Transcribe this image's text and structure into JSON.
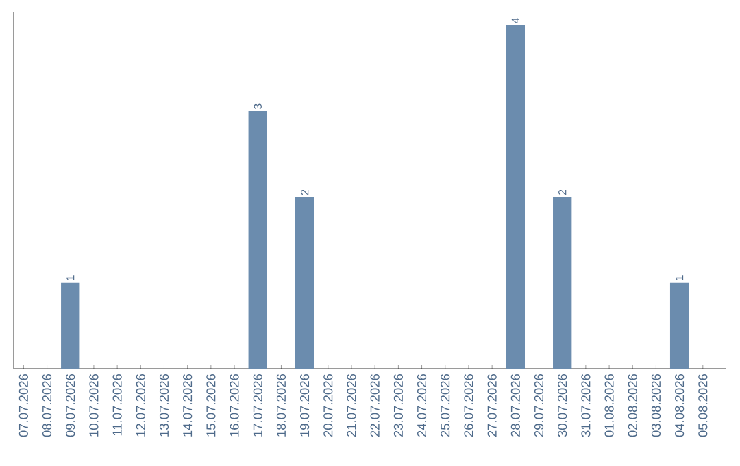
{
  "chart_data": {
    "type": "bar",
    "categories": [
      "07.07.2026",
      "08.07.2026",
      "09.07.2026",
      "10.07.2026",
      "11.07.2026",
      "12.07.2026",
      "13.07.2026",
      "14.07.2026",
      "15.07.2026",
      "16.07.2026",
      "17.07.2026",
      "18.07.2026",
      "19.07.2026",
      "20.07.2026",
      "21.07.2026",
      "22.07.2026",
      "23.07.2026",
      "24.07.2026",
      "25.07.2026",
      "26.07.2026",
      "27.07.2026",
      "28.07.2026",
      "29.07.2026",
      "30.07.2026",
      "31.07.2026",
      "01.08.2026",
      "02.08.2026",
      "03.08.2026",
      "04.08.2026",
      "05.08.2026"
    ],
    "values": [
      0,
      0,
      1,
      0,
      0,
      0,
      0,
      0,
      0,
      0,
      3,
      0,
      2,
      0,
      0,
      0,
      0,
      0,
      0,
      0,
      0,
      4,
      0,
      2,
      0,
      0,
      0,
      0,
      1,
      0
    ],
    "value_labels": [
      null,
      null,
      "1",
      null,
      null,
      null,
      null,
      null,
      null,
      null,
      "3",
      null,
      "2",
      null,
      null,
      null,
      null,
      null,
      null,
      null,
      null,
      "4",
      null,
      "2",
      null,
      null,
      null,
      null,
      "1",
      null
    ],
    "color": "#6b8cae",
    "ylim": [
      0,
      4.15
    ],
    "tick_labels": "x"
  }
}
